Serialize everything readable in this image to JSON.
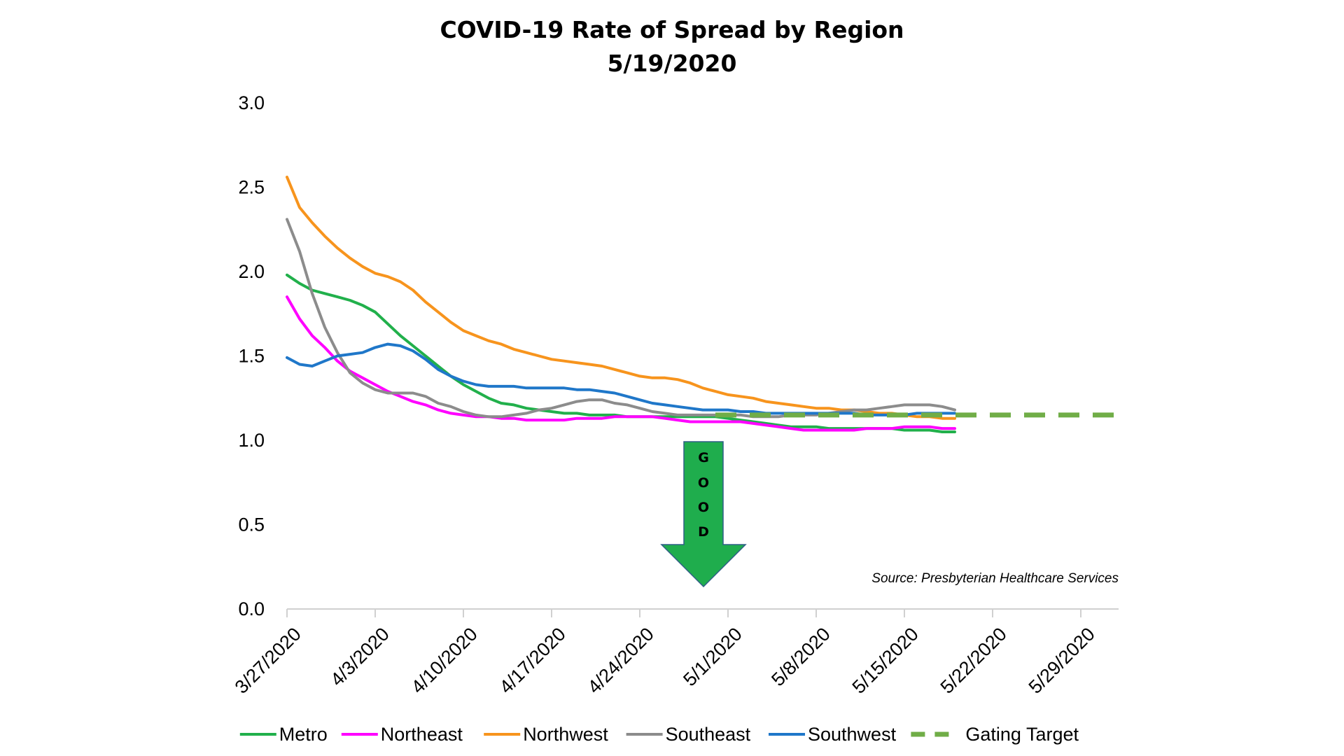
{
  "chart_data": {
    "type": "line",
    "title": "COVID-19 Rate of Spread by Region",
    "subtitle": "5/19/2020",
    "xlabel": "",
    "ylabel": "",
    "ylim": [
      0,
      3
    ],
    "yticks": [
      "0.0",
      "0.5",
      "1.0",
      "1.5",
      "2.0",
      "2.5",
      "3.0"
    ],
    "xticks": [
      "3/27/2020",
      "4/3/2020",
      "4/10/2020",
      "4/17/2020",
      "4/24/2020",
      "5/1/2020",
      "5/8/2020",
      "5/15/2020",
      "5/22/2020",
      "5/29/2020"
    ],
    "xlim": [
      "2020-03-27",
      "2020-06-01"
    ],
    "grid": false,
    "legend_position": "bottom",
    "annotations": {
      "source": "Source: Presbyterian Healthcare Services",
      "arrow_text": [
        "G",
        "O",
        "O",
        "D"
      ]
    },
    "series": [
      {
        "name": "Metro",
        "color": "#21B04B",
        "dashed": false,
        "dates": [
          "2020-03-27",
          "2020-03-28",
          "2020-03-29",
          "2020-03-30",
          "2020-03-31",
          "2020-04-01",
          "2020-04-02",
          "2020-04-03",
          "2020-04-04",
          "2020-04-05",
          "2020-04-06",
          "2020-04-07",
          "2020-04-08",
          "2020-04-09",
          "2020-04-10",
          "2020-04-11",
          "2020-04-12",
          "2020-04-13",
          "2020-04-14",
          "2020-04-15",
          "2020-04-16",
          "2020-04-17",
          "2020-04-18",
          "2020-04-19",
          "2020-04-20",
          "2020-04-21",
          "2020-04-22",
          "2020-04-23",
          "2020-04-24",
          "2020-04-25",
          "2020-04-26",
          "2020-04-27",
          "2020-04-28",
          "2020-04-29",
          "2020-04-30",
          "2020-05-01",
          "2020-05-02",
          "2020-05-03",
          "2020-05-04",
          "2020-05-05",
          "2020-05-06",
          "2020-05-07",
          "2020-05-08",
          "2020-05-09",
          "2020-05-10",
          "2020-05-11",
          "2020-05-12",
          "2020-05-13",
          "2020-05-14",
          "2020-05-15",
          "2020-05-16",
          "2020-05-17",
          "2020-05-18",
          "2020-05-19"
        ],
        "values": [
          1.98,
          1.93,
          1.89,
          1.87,
          1.85,
          1.83,
          1.8,
          1.76,
          1.69,
          1.62,
          1.56,
          1.5,
          1.44,
          1.38,
          1.33,
          1.29,
          1.25,
          1.22,
          1.21,
          1.19,
          1.18,
          1.17,
          1.16,
          1.16,
          1.15,
          1.15,
          1.15,
          1.14,
          1.14,
          1.14,
          1.14,
          1.14,
          1.14,
          1.14,
          1.14,
          1.13,
          1.12,
          1.11,
          1.1,
          1.09,
          1.08,
          1.08,
          1.08,
          1.07,
          1.07,
          1.07,
          1.07,
          1.07,
          1.07,
          1.06,
          1.06,
          1.06,
          1.05,
          1.05
        ]
      },
      {
        "name": "Northeast",
        "color": "#FF00FF",
        "dashed": false,
        "dates": [
          "2020-03-27",
          "2020-03-28",
          "2020-03-29",
          "2020-03-30",
          "2020-03-31",
          "2020-04-01",
          "2020-04-02",
          "2020-04-03",
          "2020-04-04",
          "2020-04-05",
          "2020-04-06",
          "2020-04-07",
          "2020-04-08",
          "2020-04-09",
          "2020-04-10",
          "2020-04-11",
          "2020-04-12",
          "2020-04-13",
          "2020-04-14",
          "2020-04-15",
          "2020-04-16",
          "2020-04-17",
          "2020-04-18",
          "2020-04-19",
          "2020-04-20",
          "2020-04-21",
          "2020-04-22",
          "2020-04-23",
          "2020-04-24",
          "2020-04-25",
          "2020-04-26",
          "2020-04-27",
          "2020-04-28",
          "2020-04-29",
          "2020-04-30",
          "2020-05-01",
          "2020-05-02",
          "2020-05-03",
          "2020-05-04",
          "2020-05-05",
          "2020-05-06",
          "2020-05-07",
          "2020-05-08",
          "2020-05-09",
          "2020-05-10",
          "2020-05-11",
          "2020-05-12",
          "2020-05-13",
          "2020-05-14",
          "2020-05-15",
          "2020-05-16",
          "2020-05-17",
          "2020-05-18",
          "2020-05-19"
        ],
        "values": [
          1.85,
          1.72,
          1.62,
          1.55,
          1.47,
          1.41,
          1.37,
          1.33,
          1.29,
          1.26,
          1.23,
          1.21,
          1.18,
          1.16,
          1.15,
          1.14,
          1.14,
          1.13,
          1.13,
          1.12,
          1.12,
          1.12,
          1.12,
          1.13,
          1.13,
          1.13,
          1.14,
          1.14,
          1.14,
          1.14,
          1.13,
          1.12,
          1.11,
          1.11,
          1.11,
          1.11,
          1.11,
          1.1,
          1.09,
          1.08,
          1.07,
          1.06,
          1.06,
          1.06,
          1.06,
          1.06,
          1.07,
          1.07,
          1.07,
          1.08,
          1.08,
          1.08,
          1.07,
          1.07
        ]
      },
      {
        "name": "Northwest",
        "color": "#F7941D",
        "dashed": false,
        "dates": [
          "2020-03-27",
          "2020-03-28",
          "2020-03-29",
          "2020-03-30",
          "2020-03-31",
          "2020-04-01",
          "2020-04-02",
          "2020-04-03",
          "2020-04-04",
          "2020-04-05",
          "2020-04-06",
          "2020-04-07",
          "2020-04-08",
          "2020-04-09",
          "2020-04-10",
          "2020-04-11",
          "2020-04-12",
          "2020-04-13",
          "2020-04-14",
          "2020-04-15",
          "2020-04-16",
          "2020-04-17",
          "2020-04-18",
          "2020-04-19",
          "2020-04-20",
          "2020-04-21",
          "2020-04-22",
          "2020-04-23",
          "2020-04-24",
          "2020-04-25",
          "2020-04-26",
          "2020-04-27",
          "2020-04-28",
          "2020-04-29",
          "2020-04-30",
          "2020-05-01",
          "2020-05-02",
          "2020-05-03",
          "2020-05-04",
          "2020-05-05",
          "2020-05-06",
          "2020-05-07",
          "2020-05-08",
          "2020-05-09",
          "2020-05-10",
          "2020-05-11",
          "2020-05-12",
          "2020-05-13",
          "2020-05-14",
          "2020-05-15",
          "2020-05-16",
          "2020-05-17",
          "2020-05-18",
          "2020-05-19"
        ],
        "values": [
          2.56,
          2.38,
          2.29,
          2.21,
          2.14,
          2.08,
          2.03,
          1.99,
          1.97,
          1.94,
          1.89,
          1.82,
          1.76,
          1.7,
          1.65,
          1.62,
          1.59,
          1.57,
          1.54,
          1.52,
          1.5,
          1.48,
          1.47,
          1.46,
          1.45,
          1.44,
          1.42,
          1.4,
          1.38,
          1.37,
          1.37,
          1.36,
          1.34,
          1.31,
          1.29,
          1.27,
          1.26,
          1.25,
          1.23,
          1.22,
          1.21,
          1.2,
          1.19,
          1.19,
          1.18,
          1.18,
          1.17,
          1.16,
          1.16,
          1.15,
          1.14,
          1.14,
          1.13,
          1.13
        ]
      },
      {
        "name": "Southeast",
        "color": "#8C8C8C",
        "dashed": false,
        "dates": [
          "2020-03-27",
          "2020-03-28",
          "2020-03-29",
          "2020-03-30",
          "2020-03-31",
          "2020-04-01",
          "2020-04-02",
          "2020-04-03",
          "2020-04-04",
          "2020-04-05",
          "2020-04-06",
          "2020-04-07",
          "2020-04-08",
          "2020-04-09",
          "2020-04-10",
          "2020-04-11",
          "2020-04-12",
          "2020-04-13",
          "2020-04-14",
          "2020-04-15",
          "2020-04-16",
          "2020-04-17",
          "2020-04-18",
          "2020-04-19",
          "2020-04-20",
          "2020-04-21",
          "2020-04-22",
          "2020-04-23",
          "2020-04-24",
          "2020-04-25",
          "2020-04-26",
          "2020-04-27",
          "2020-04-28",
          "2020-04-29",
          "2020-04-30",
          "2020-05-01",
          "2020-05-02",
          "2020-05-03",
          "2020-05-04",
          "2020-05-05",
          "2020-05-06",
          "2020-05-07",
          "2020-05-08",
          "2020-05-09",
          "2020-05-10",
          "2020-05-11",
          "2020-05-12",
          "2020-05-13",
          "2020-05-14",
          "2020-05-15",
          "2020-05-16",
          "2020-05-17",
          "2020-05-18",
          "2020-05-19"
        ],
        "values": [
          2.31,
          2.12,
          1.87,
          1.67,
          1.52,
          1.4,
          1.34,
          1.3,
          1.28,
          1.28,
          1.28,
          1.26,
          1.22,
          1.2,
          1.17,
          1.15,
          1.14,
          1.14,
          1.15,
          1.16,
          1.18,
          1.19,
          1.21,
          1.23,
          1.24,
          1.24,
          1.22,
          1.21,
          1.19,
          1.17,
          1.16,
          1.15,
          1.15,
          1.15,
          1.15,
          1.15,
          1.15,
          1.14,
          1.14,
          1.14,
          1.15,
          1.15,
          1.15,
          1.16,
          1.17,
          1.18,
          1.18,
          1.19,
          1.2,
          1.21,
          1.21,
          1.21,
          1.2,
          1.18
        ]
      },
      {
        "name": "Southwest",
        "color": "#1F77C9",
        "dashed": false,
        "dates": [
          "2020-03-27",
          "2020-03-28",
          "2020-03-29",
          "2020-03-30",
          "2020-03-31",
          "2020-04-01",
          "2020-04-02",
          "2020-04-03",
          "2020-04-04",
          "2020-04-05",
          "2020-04-06",
          "2020-04-07",
          "2020-04-08",
          "2020-04-09",
          "2020-04-10",
          "2020-04-11",
          "2020-04-12",
          "2020-04-13",
          "2020-04-14",
          "2020-04-15",
          "2020-04-16",
          "2020-04-17",
          "2020-04-18",
          "2020-04-19",
          "2020-04-20",
          "2020-04-21",
          "2020-04-22",
          "2020-04-23",
          "2020-04-24",
          "2020-04-25",
          "2020-04-26",
          "2020-04-27",
          "2020-04-28",
          "2020-04-29",
          "2020-04-30",
          "2020-05-01",
          "2020-05-02",
          "2020-05-03",
          "2020-05-04",
          "2020-05-05",
          "2020-05-06",
          "2020-05-07",
          "2020-05-08",
          "2020-05-09",
          "2020-05-10",
          "2020-05-11",
          "2020-05-12",
          "2020-05-13",
          "2020-05-14",
          "2020-05-15",
          "2020-05-16",
          "2020-05-17",
          "2020-05-18",
          "2020-05-19"
        ],
        "values": [
          1.49,
          1.45,
          1.44,
          1.47,
          1.5,
          1.51,
          1.52,
          1.55,
          1.57,
          1.56,
          1.53,
          1.48,
          1.42,
          1.38,
          1.35,
          1.33,
          1.32,
          1.32,
          1.32,
          1.31,
          1.31,
          1.31,
          1.31,
          1.3,
          1.3,
          1.29,
          1.28,
          1.26,
          1.24,
          1.22,
          1.21,
          1.2,
          1.19,
          1.18,
          1.18,
          1.18,
          1.17,
          1.17,
          1.16,
          1.16,
          1.16,
          1.16,
          1.16,
          1.16,
          1.16,
          1.16,
          1.15,
          1.15,
          1.15,
          1.15,
          1.16,
          1.16,
          1.16,
          1.16
        ]
      },
      {
        "name": "Gating Target",
        "color": "#70AD47",
        "dashed": true,
        "dates": [
          "2020-04-30",
          "2020-06-01"
        ],
        "values": [
          1.15,
          1.15
        ]
      }
    ]
  }
}
